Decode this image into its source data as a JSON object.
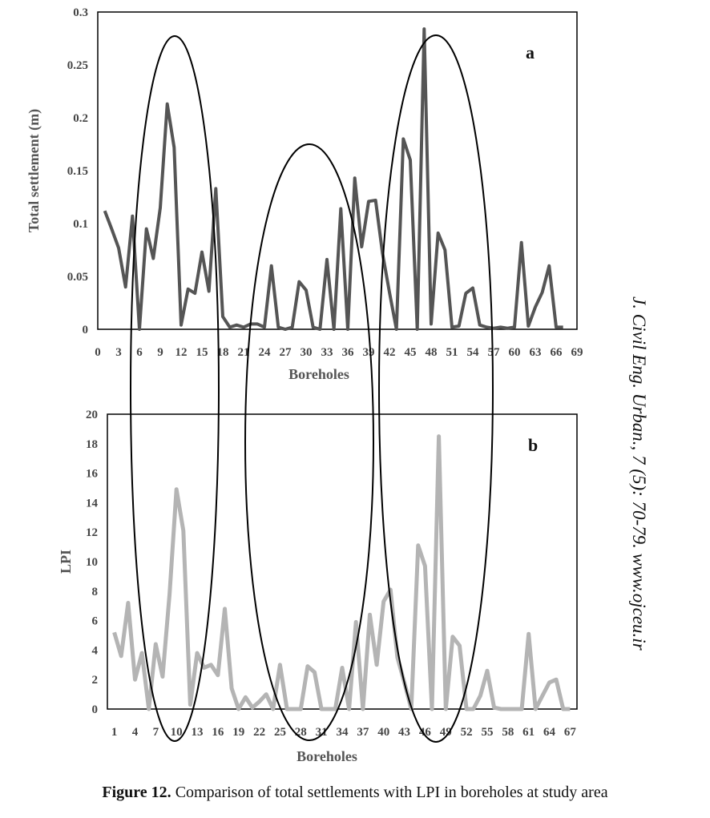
{
  "chart_data": [
    {
      "type": "line",
      "panel_label": "a",
      "title": "",
      "xlabel": "Boreholes",
      "ylabel": "Total settlement (m)",
      "xlim": [
        0,
        69
      ],
      "ylim": [
        0,
        0.3
      ],
      "x_ticks": [
        "0",
        "3",
        "6",
        "9",
        "12",
        "15",
        "18",
        "21",
        "24",
        "27",
        "30",
        "33",
        "36",
        "39",
        "42",
        "45",
        "48",
        "51",
        "54",
        "57",
        "60",
        "63",
        "66",
        "69"
      ],
      "y_ticks": [
        "0",
        "0.05",
        "0.1",
        "0.15",
        "0.2",
        "0.25",
        "0.3"
      ],
      "series": [
        {
          "color": "#555555",
          "x": [
            1,
            2,
            3,
            4,
            5,
            6,
            7,
            8,
            9,
            10,
            11,
            12,
            13,
            14,
            15,
            16,
            17,
            18,
            19,
            20,
            21,
            22,
            23,
            24,
            25,
            26,
            27,
            28,
            29,
            30,
            31,
            32,
            33,
            34,
            35,
            36,
            37,
            38,
            39,
            40,
            41,
            42,
            43,
            44,
            45,
            46,
            47,
            48,
            49,
            50,
            51,
            52,
            53,
            54,
            55,
            56,
            57,
            58,
            59,
            60,
            61,
            62,
            63,
            64,
            65,
            66,
            67
          ],
          "values": [
            0.112,
            0.095,
            0.077,
            0.04,
            0.107,
            0,
            0.095,
            0.067,
            0.115,
            0.213,
            0.172,
            0.004,
            0.038,
            0.034,
            0.073,
            0.036,
            0.133,
            0.012,
            0.002,
            0.004,
            0.002,
            0.005,
            0.005,
            0.002,
            0.06,
            0.002,
            0,
            0.002,
            0.045,
            0.037,
            0.002,
            0,
            0.066,
            0,
            0.114,
            0,
            0.143,
            0.078,
            0.121,
            0.122,
            0.072,
            0.035,
            0,
            0.18,
            0.16,
            0,
            0.284,
            0.005,
            0.091,
            0.075,
            0.002,
            0.003,
            0.034,
            0.039,
            0.004,
            0.002,
            0.001,
            0.002,
            0.001,
            0.002,
            0.082,
            0.003,
            0.021,
            0.035,
            0.06,
            0.002,
            0.002
          ]
        }
      ]
    },
    {
      "type": "line",
      "panel_label": "b",
      "title": "",
      "xlabel": "Boreholes",
      "ylabel": "LPI",
      "xlim": [
        0,
        68
      ],
      "ylim": [
        0,
        20
      ],
      "x_ticks": [
        "1",
        "4",
        "7",
        "10",
        "13",
        "16",
        "19",
        "22",
        "25",
        "28",
        "31",
        "34",
        "37",
        "40",
        "43",
        "46",
        "49",
        "52",
        "55",
        "58",
        "61",
        "64",
        "67"
      ],
      "x_tick_values": [
        1,
        4,
        7,
        10,
        13,
        16,
        19,
        22,
        25,
        28,
        31,
        34,
        37,
        40,
        43,
        46,
        49,
        52,
        55,
        58,
        61,
        64,
        67
      ],
      "y_ticks": [
        "0",
        "2",
        "4",
        "6",
        "8",
        "10",
        "12",
        "14",
        "16",
        "18",
        "20"
      ],
      "series": [
        {
          "color": "#b4b4b4",
          "x": [
            1,
            2,
            3,
            4,
            5,
            6,
            7,
            8,
            9,
            10,
            11,
            12,
            13,
            14,
            15,
            16,
            17,
            18,
            19,
            20,
            21,
            22,
            23,
            24,
            25,
            26,
            27,
            28,
            29,
            30,
            31,
            32,
            33,
            34,
            35,
            36,
            37,
            38,
            39,
            40,
            41,
            42,
            43,
            44,
            45,
            46,
            47,
            48,
            49,
            50,
            51,
            52,
            53,
            54,
            55,
            56,
            57,
            58,
            59,
            60,
            61,
            62,
            63,
            64,
            65,
            66,
            67
          ],
          "values": [
            5.2,
            3.6,
            7.2,
            2,
            3.8,
            0,
            4.4,
            2.2,
            7.8,
            14.9,
            12.1,
            0.3,
            3.8,
            2.8,
            3,
            2.3,
            6.8,
            1.4,
            0,
            0.8,
            0.1,
            0.5,
            1,
            0,
            3,
            0,
            0,
            0,
            2.9,
            2.5,
            0,
            0,
            0,
            2.8,
            0,
            5.9,
            0,
            6.4,
            3,
            7.3,
            8.1,
            3.5,
            1.8,
            0,
            11.1,
            9.7,
            0,
            18.5,
            0,
            4.9,
            4.3,
            0,
            0,
            0.9,
            2.6,
            0.1,
            0,
            0,
            0,
            0,
            5.1,
            0,
            0.9,
            1.8,
            2,
            0,
            0
          ]
        }
      ]
    }
  ],
  "journal_ref": "J. Civil Eng. Urban., 7 (5): 70-79. www.ojceu.ir",
  "caption": {
    "label": "Figure 12.",
    "text": " Comparison of total settlements with LPI in boreholes at study area"
  }
}
